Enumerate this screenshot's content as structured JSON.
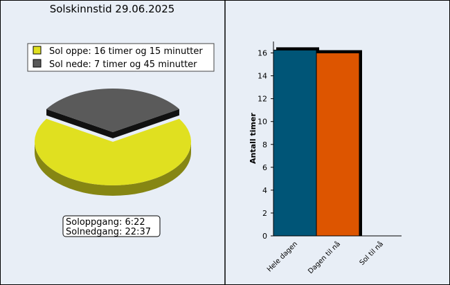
{
  "title": "Solskinnstid 29.06.2025",
  "legend": [
    {
      "label": "Sol oppe: 16 timer og 15 minutter",
      "color": "#e0e020"
    },
    {
      "label": "Sol nede: 7 timer og 45 minutter",
      "color": "#5a5a5a"
    }
  ],
  "sun_times": {
    "sunrise": "Soloppgang: 6:22",
    "sunset": "Solnedgang: 22:37"
  },
  "chart_data": [
    {
      "type": "pie",
      "title": "Solskinnstid 29.06.2025",
      "slices": [
        {
          "name": "Sol oppe",
          "value": 16.25,
          "color": "#e0e020"
        },
        {
          "name": "Sol nede",
          "value": 7.75,
          "color": "#5a5a5a"
        }
      ]
    },
    {
      "type": "bar",
      "categories": [
        "Hele dagen",
        "Dagen til nå",
        "Sol til nå"
      ],
      "values": [
        16.25,
        16.0,
        0
      ],
      "colors": [
        "#005577",
        "#dd5500",
        "#999999"
      ],
      "ylabel": "Antall timer",
      "xlabel": "",
      "ylim": [
        0,
        17
      ],
      "yticks": [
        "0",
        "2",
        "4",
        "6",
        "8",
        "10",
        "12",
        "14",
        "16"
      ]
    }
  ]
}
